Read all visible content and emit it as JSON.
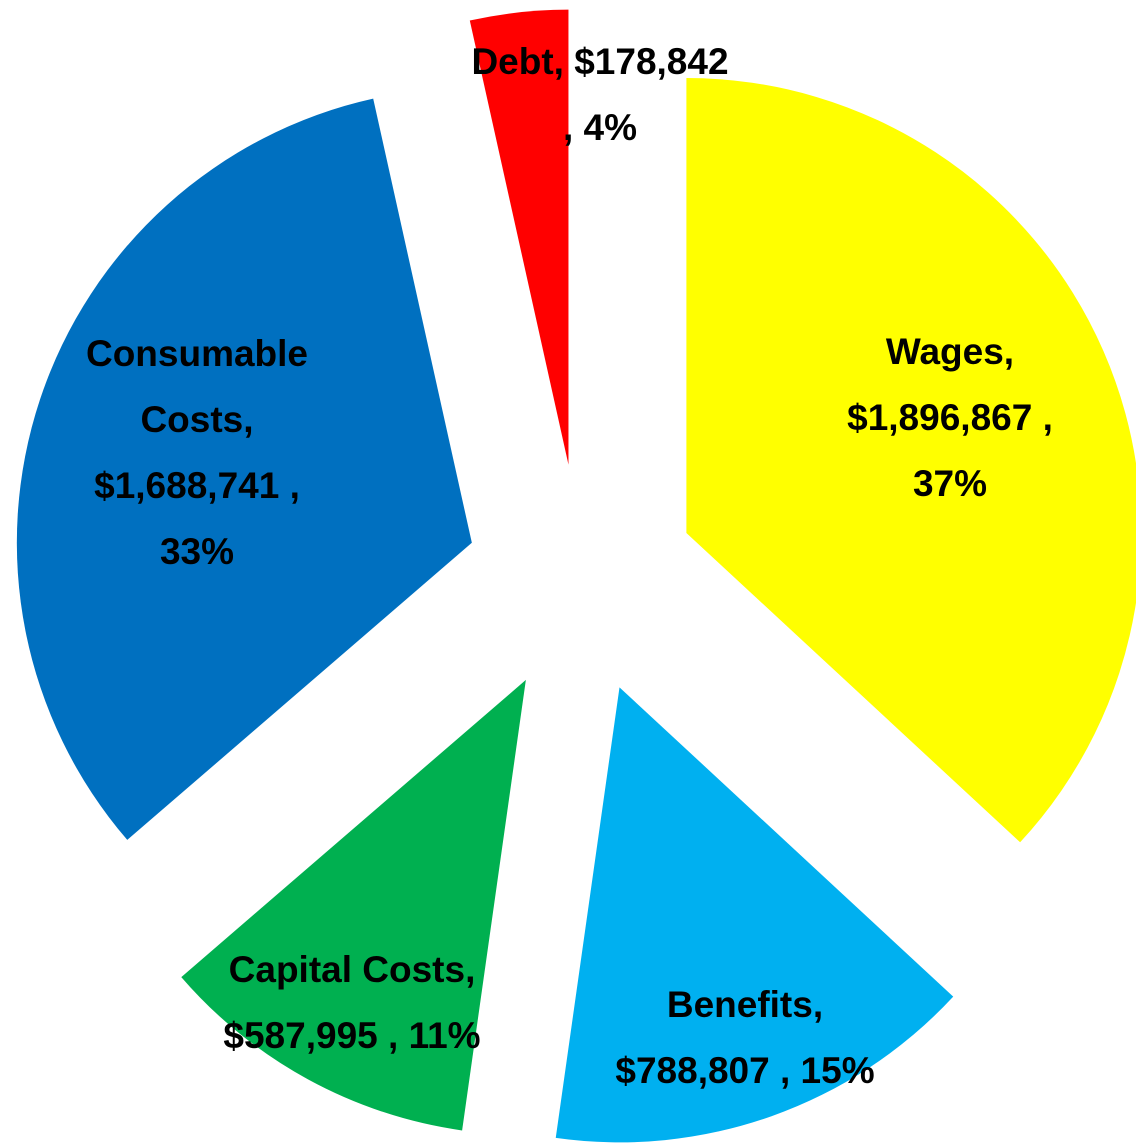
{
  "chart_data": {
    "type": "pie",
    "values": [
      1896867,
      788807,
      587995,
      1688741,
      178842
    ],
    "colors": [
      "#ffff00",
      "#00b0f0",
      "#00b050",
      "#0070c0",
      "#ff0000"
    ],
    "value_labels": [
      [
        "Wages,",
        "$1,896,867 ,",
        "37%"
      ],
      [
        "Benefits,",
        "$788,807 , 15%"
      ],
      [
        "Capital Costs,",
        "$587,995 , 11%"
      ],
      [
        "Consumable",
        "Costs,",
        "$1,688,741 ,",
        "33%"
      ],
      [
        "Debt, $178,842",
        ", 4%"
      ]
    ]
  }
}
